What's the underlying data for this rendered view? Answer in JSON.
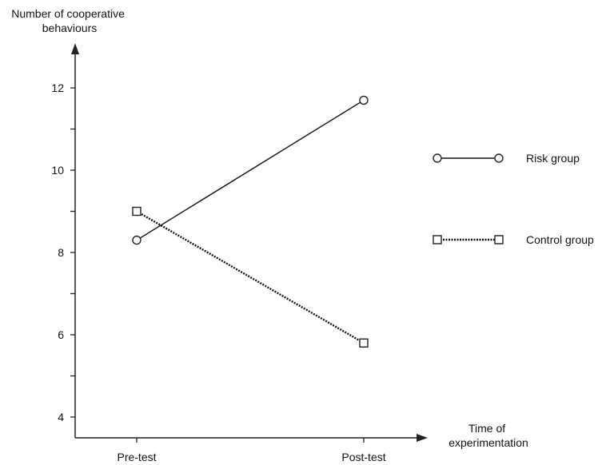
{
  "chart_data": {
    "type": "line",
    "title": "",
    "ylabel": [
      "Number of cooperative",
      "behaviours"
    ],
    "xlabel": [
      "Time of",
      "experimentation"
    ],
    "categories": [
      "Pre-test",
      "Post-test"
    ],
    "ylim": [
      3.5,
      13
    ],
    "yticks": [
      4,
      5,
      6,
      7,
      8,
      9,
      10,
      11,
      12
    ],
    "ytick_labels": [
      "4",
      "6",
      "8",
      "10",
      "12"
    ],
    "grid": false,
    "legend_position": "right",
    "series": [
      {
        "name": "Risk group",
        "values": [
          8.3,
          11.7
        ],
        "marker": "circle",
        "line_style": "solid",
        "color": "#111111"
      },
      {
        "name": "Control group",
        "values": [
          9.0,
          5.8
        ],
        "marker": "square",
        "line_style": "dotted",
        "color": "#111111"
      }
    ]
  }
}
